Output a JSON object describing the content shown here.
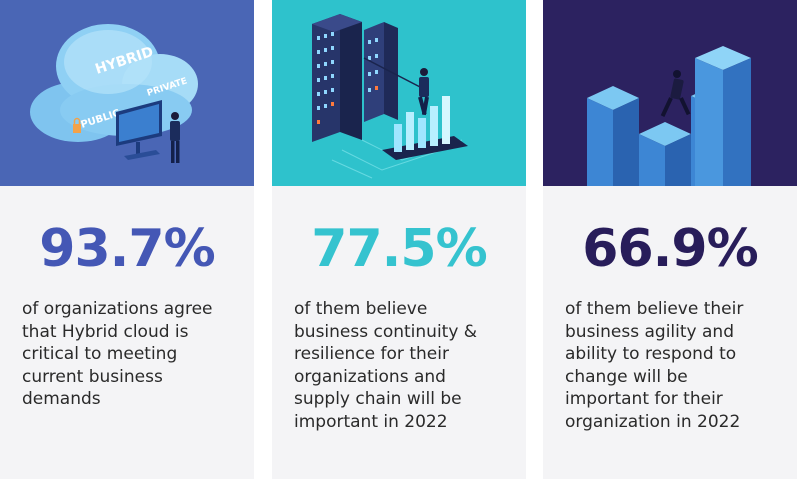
{
  "cards": [
    {
      "stat": "93.7%",
      "accent": "#4457b5",
      "illustration": "hybrid-cloud-illustration",
      "cloud_labels": {
        "top": "HYBRID",
        "right": "PRIVATE",
        "left": "PUBLIC"
      },
      "desc_lines": [
        "of organizations agree",
        "that Hybrid cloud is",
        "critical to meeting",
        "current business",
        "demands"
      ]
    },
    {
      "stat": "77.5%",
      "accent": "#35c3cf",
      "illustration": "business-continuity-illustration",
      "desc_lines": [
        "of them believe",
        "business continuity &",
        "resilience for their",
        "organizations and",
        "supply chain will be",
        "important in 2022"
      ]
    },
    {
      "stat": "66.9%",
      "accent": "#281d5a",
      "illustration": "business-agility-illustration",
      "desc_lines": [
        "of them believe their",
        "business agility and",
        "ability to respond to",
        "change will be",
        "important for their",
        "organization in 2022"
      ]
    }
  ]
}
